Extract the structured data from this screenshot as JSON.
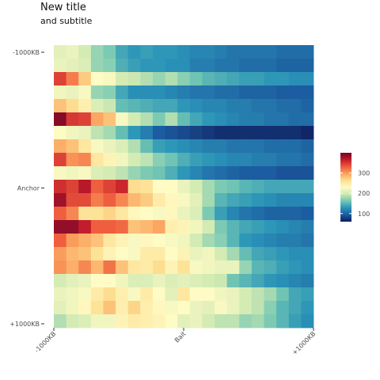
{
  "chart_data": {
    "type": "heatmap",
    "title": "New title",
    "subtitle": "and subtitle",
    "xlabel": "",
    "ylabel": "",
    "x_ticks": [
      "-1000KB",
      "Bait",
      "+1000KB"
    ],
    "y_ticks": [
      "-1000KB",
      "Anchor",
      "+1000KB"
    ],
    "n_cols": 21,
    "n_rows": 21,
    "colorscale": [
      "#0e1d5c",
      "#1c5a9f",
      "#2a94b8",
      "#74c7b3",
      "#cfe9b2",
      "#fffbc5",
      "#fde092",
      "#fba05d",
      "#ee5a3d",
      "#c11b2b",
      "#6e0426"
    ],
    "colorbar": {
      "min": 60,
      "max": 400,
      "ticks": [
        100,
        200,
        300
      ]
    },
    "legend_position": "right",
    "values": [
      [
        210,
        215,
        200,
        175,
        165,
        140,
        130,
        135,
        130,
        130,
        125,
        120,
        120,
        115,
        110,
        110,
        110,
        110,
        105,
        105,
        105
      ],
      [
        215,
        210,
        205,
        175,
        170,
        145,
        135,
        130,
        130,
        125,
        125,
        115,
        115,
        110,
        110,
        105,
        105,
        105,
        100,
        100,
        100
      ],
      [
        345,
        315,
        275,
        230,
        225,
        200,
        195,
        185,
        175,
        185,
        170,
        160,
        150,
        145,
        140,
        135,
        135,
        130,
        130,
        125,
        125
      ],
      [
        220,
        215,
        225,
        175,
        170,
        140,
        125,
        125,
        125,
        120,
        115,
        110,
        110,
        105,
        105,
        100,
        100,
        100,
        95,
        95,
        95
      ],
      [
        280,
        265,
        245,
        205,
        195,
        155,
        150,
        145,
        140,
        140,
        130,
        125,
        120,
        120,
        115,
        115,
        110,
        110,
        105,
        105,
        100
      ],
      [
        390,
        350,
        345,
        295,
        280,
        225,
        200,
        185,
        165,
        185,
        155,
        140,
        130,
        125,
        120,
        115,
        115,
        110,
        110,
        105,
        105
      ],
      [
        230,
        220,
        215,
        190,
        180,
        155,
        130,
        115,
        95,
        90,
        85,
        80,
        75,
        70,
        70,
        70,
        70,
        70,
        70,
        70,
        65
      ],
      [
        290,
        280,
        255,
        225,
        215,
        205,
        185,
        155,
        135,
        130,
        125,
        120,
        115,
        115,
        110,
        110,
        110,
        105,
        105,
        105,
        100
      ],
      [
        345,
        305,
        310,
        255,
        240,
        220,
        200,
        190,
        170,
        160,
        145,
        135,
        130,
        125,
        120,
        120,
        115,
        115,
        110,
        110,
        105
      ],
      [
        225,
        220,
        225,
        205,
        200,
        190,
        175,
        165,
        160,
        145,
        130,
        120,
        110,
        105,
        100,
        95,
        95,
        95,
        90,
        90,
        90
      ],
      [
        355,
        345,
        370,
        330,
        345,
        360,
        265,
        260,
        230,
        230,
        215,
        200,
        180,
        165,
        160,
        150,
        145,
        140,
        140,
        140,
        140
      ],
      [
        380,
        340,
        340,
        315,
        330,
        310,
        285,
        275,
        250,
        235,
        225,
        210,
        180,
        150,
        140,
        135,
        130,
        125,
        120,
        120,
        120
      ],
      [
        330,
        310,
        260,
        260,
        270,
        255,
        235,
        230,
        225,
        235,
        215,
        205,
        165,
        135,
        120,
        110,
        105,
        100,
        100,
        100,
        95
      ],
      [
        385,
        385,
        365,
        330,
        330,
        325,
        280,
        285,
        295,
        245,
        240,
        220,
        200,
        165,
        150,
        140,
        135,
        130,
        125,
        120,
        115
      ],
      [
        330,
        300,
        290,
        280,
        255,
        240,
        225,
        235,
        230,
        225,
        220,
        200,
        180,
        170,
        150,
        130,
        125,
        120,
        115,
        115,
        110
      ],
      [
        300,
        285,
        280,
        260,
        240,
        230,
        225,
        250,
        250,
        230,
        240,
        215,
        220,
        200,
        180,
        155,
        140,
        135,
        130,
        125,
        125
      ],
      [
        305,
        290,
        310,
        285,
        320,
        280,
        255,
        250,
        265,
        240,
        260,
        225,
        220,
        215,
        215,
        175,
        150,
        145,
        135,
        130,
        125
      ],
      [
        200,
        210,
        215,
        230,
        230,
        220,
        205,
        205,
        215,
        205,
        210,
        205,
        200,
        195,
        160,
        150,
        140,
        130,
        125,
        120,
        115
      ],
      [
        215,
        220,
        225,
        250,
        265,
        245,
        225,
        250,
        230,
        210,
        255,
        230,
        230,
        220,
        215,
        200,
        190,
        180,
        160,
        140,
        135
      ],
      [
        210,
        220,
        235,
        260,
        280,
        245,
        270,
        245,
        235,
        225,
        230,
        215,
        210,
        225,
        215,
        200,
        190,
        170,
        150,
        140,
        130
      ],
      [
        185,
        200,
        205,
        220,
        220,
        240,
        250,
        245,
        240,
        230,
        210,
        215,
        200,
        190,
        190,
        175,
        180,
        165,
        150,
        135,
        125
      ]
    ]
  }
}
